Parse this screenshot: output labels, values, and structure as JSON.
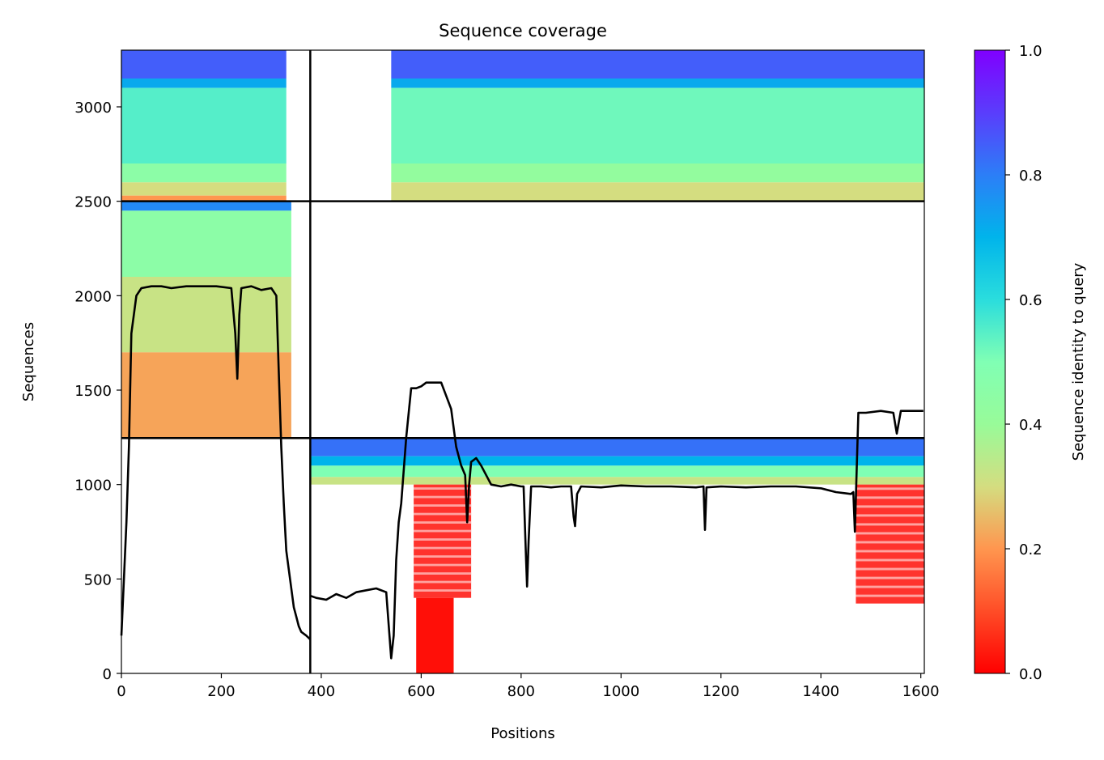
{
  "chart_data": {
    "type": "heatmap",
    "title": "Sequence coverage",
    "xlabel": "Positions",
    "ylabel": "Sequences",
    "xlim": [
      0,
      1607
    ],
    "ylim": [
      0,
      3300
    ],
    "xticks": [
      0,
      200,
      400,
      600,
      800,
      1000,
      1200,
      1400,
      1600
    ],
    "yticks": [
      0,
      500,
      1000,
      1500,
      2000,
      2500,
      3000
    ],
    "colorbar": {
      "label": "Sequence identity to query",
      "range": [
        0,
        1
      ],
      "ticks": [
        "0.0",
        "0.2",
        "0.4",
        "0.6",
        "0.8",
        "1.0"
      ],
      "colormap": "rainbow_r"
    },
    "domain_boundaries": {
      "x": [
        378
      ],
      "y": [
        1246,
        2500
      ]
    },
    "blocks": [
      {
        "x": [
          0,
          378
        ],
        "y": [
          2500,
          3300
        ],
        "rows": [
          [
            3150,
            3300,
            0.85
          ],
          [
            3100,
            3150,
            0.72
          ],
          [
            2700,
            3100,
            0.55
          ],
          [
            2600,
            2700,
            0.45
          ],
          [
            2530,
            2600,
            0.3
          ],
          [
            2500,
            2530,
            0.2
          ]
        ],
        "coverage_end": 330
      },
      {
        "x": [
          378,
          1607
        ],
        "y": [
          2500,
          3300
        ],
        "rows": [
          [
            3150,
            3300,
            0.85
          ],
          [
            3100,
            3150,
            0.72
          ],
          [
            2700,
            3100,
            0.52
          ],
          [
            2600,
            2700,
            0.42
          ],
          [
            2500,
            2600,
            0.3
          ]
        ],
        "coverage_start": 540
      },
      {
        "x": [
          0,
          378
        ],
        "y": [
          1246,
          2500
        ],
        "rows": [
          [
            2450,
            2500,
            0.78
          ],
          [
            2100,
            2450,
            0.45
          ],
          [
            1700,
            2100,
            0.32
          ],
          [
            1246,
            1700,
            0.22
          ]
        ],
        "coverage_end": 340
      },
      {
        "x": [
          378,
          1607
        ],
        "y": [
          1000,
          1246
        ],
        "rows": [
          [
            1150,
            1246,
            0.82
          ],
          [
            1100,
            1150,
            0.7
          ],
          [
            1040,
            1100,
            0.5
          ],
          [
            1000,
            1040,
            0.32
          ]
        ]
      },
      {
        "x": [
          585,
          700
        ],
        "y": [
          400,
          1000
        ],
        "rows": [
          [
            400,
            1000,
            0.02
          ]
        ],
        "sparse": true
      },
      {
        "x": [
          590,
          665
        ],
        "y": [
          0,
          400
        ],
        "rows": [
          [
            0,
            400,
            0.02
          ]
        ]
      },
      {
        "x": [
          1470,
          1607
        ],
        "y": [
          370,
          1000
        ],
        "rows": [
          [
            370,
            1000,
            0.02
          ]
        ],
        "sparse": true
      }
    ],
    "coverage_line": {
      "x": [
        0,
        5,
        10,
        15,
        20,
        25,
        30,
        40,
        60,
        80,
        100,
        130,
        160,
        190,
        220,
        228,
        232,
        236,
        240,
        260,
        280,
        300,
        310,
        315,
        320,
        325,
        330,
        335,
        340,
        345,
        350,
        355,
        360,
        370,
        378,
        379,
        390,
        410,
        430,
        450,
        470,
        490,
        510,
        530,
        540,
        545,
        550,
        555,
        560,
        570,
        580,
        585,
        590,
        600,
        610,
        620,
        640,
        660,
        670,
        675,
        680,
        688,
        692,
        696,
        700,
        710,
        720,
        740,
        760,
        780,
        800,
        805,
        810,
        812,
        815,
        820,
        840,
        860,
        880,
        900,
        905,
        908,
        912,
        920,
        960,
        1000,
        1050,
        1100,
        1150,
        1165,
        1168,
        1171,
        1200,
        1250,
        1300,
        1350,
        1400,
        1430,
        1460,
        1465,
        1468,
        1475,
        1490,
        1520,
        1545,
        1552,
        1560,
        1570,
        1590,
        1600,
        1605
      ],
      "y": [
        200,
        500,
        800,
        1200,
        1800,
        1900,
        2000,
        2040,
        2050,
        2050,
        2040,
        2050,
        2050,
        2050,
        2040,
        1800,
        1560,
        1900,
        2040,
        2050,
        2030,
        2040,
        2000,
        1600,
        1200,
        900,
        650,
        550,
        450,
        350,
        300,
        250,
        220,
        200,
        180,
        410,
        400,
        390,
        420,
        400,
        430,
        440,
        450,
        430,
        80,
        200,
        600,
        800,
        900,
        1250,
        1510,
        1510,
        1510,
        1520,
        1540,
        1540,
        1540,
        1400,
        1200,
        1150,
        1100,
        1050,
        800,
        1000,
        1120,
        1140,
        1100,
        1000,
        990,
        1000,
        990,
        990,
        600,
        460,
        700,
        990,
        990,
        985,
        990,
        990,
        830,
        780,
        950,
        990,
        985,
        995,
        990,
        990,
        985,
        990,
        760,
        985,
        990,
        985,
        990,
        990,
        980,
        960,
        950,
        960,
        750,
        1380,
        1380,
        1390,
        1380,
        1270,
        1390,
        1390,
        1390,
        1390,
        1390
      ]
    }
  }
}
